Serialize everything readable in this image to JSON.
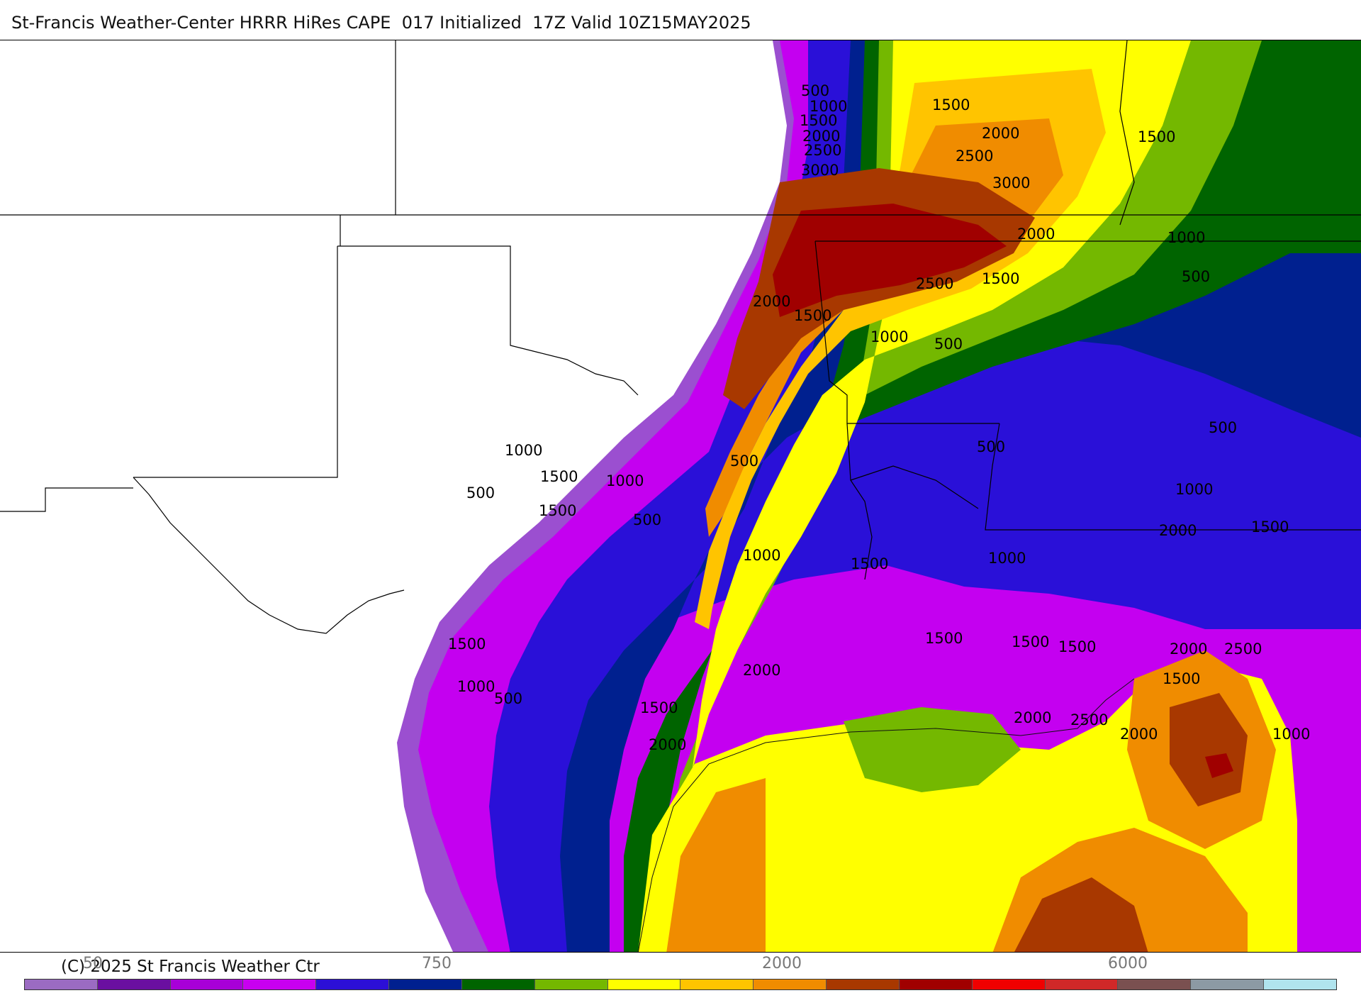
{
  "title": "St-Francis Weather-Center HRRR HiRes CAPE  017 Initialized  17Z Valid 10Z15MAY2025",
  "copyright": "(C) 2025 St Francis Weather Ctr",
  "palette": [
    "#ffffff",
    "#9b6bc2",
    "#6a0fa0",
    "#a800d8",
    "#c800f0",
    "#2c0fd6",
    "#00208f",
    "#006400",
    "#74b800",
    "#ffff00",
    "#ffc400",
    "#f08c00",
    "#a83800",
    "#a00000",
    "#f00000",
    "#d02828",
    "#7a5050",
    "#8c9aa4",
    "#b0e4ee"
  ],
  "colorbar_tick_labels": [
    "50",
    "750",
    "2000",
    "6000"
  ],
  "contour_labels": [
    "500",
    "1000",
    "1500",
    "2000",
    "2500",
    "3000"
  ]
}
